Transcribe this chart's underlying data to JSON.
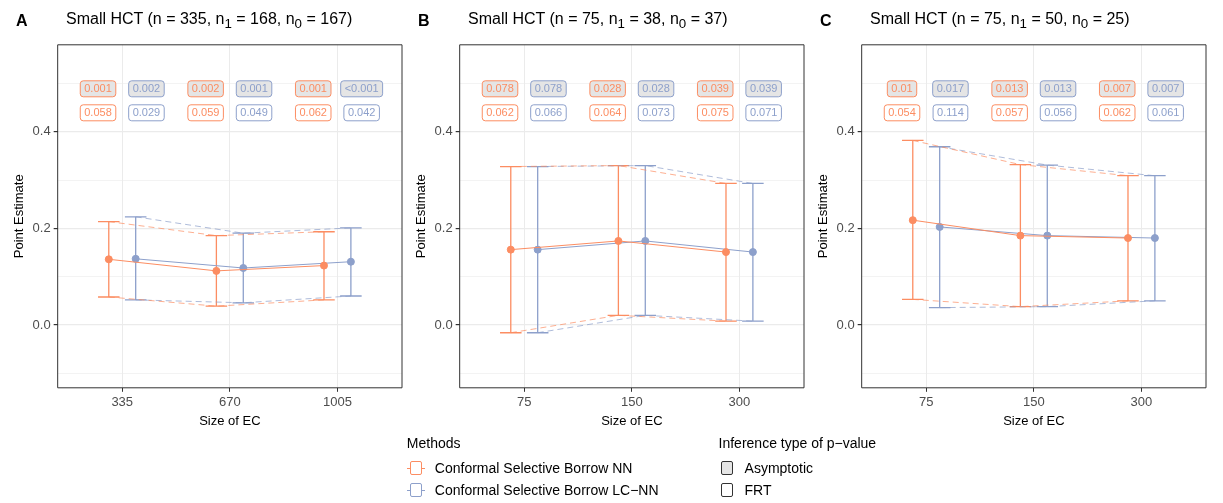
{
  "chart_data": [
    {
      "type": "line",
      "title": "Small HCT (n = 335, n$_{1}$ = 168, n$_{0}$ = 167)",
      "xlabel": "Size of EC",
      "ylabel": "Point Estimate",
      "legend_title": "Methods",
      "legend": "bottom",
      "marker": "circle",
      "line_style": "solid",
      "grid": true,
      "categories": [
        "335",
        "670",
        "1005"
      ],
      "ylim": [
        -0.13,
        0.58
      ],
      "yticks": [
        {
          "value": -0.1,
          "label": null
        },
        {
          "value": 0,
          "label": "0.0"
        },
        {
          "value": 0.1,
          "label": null
        },
        {
          "value": 0.2,
          "label": "0.2"
        },
        {
          "value": 0.3,
          "label": null
        },
        {
          "value": 0.4,
          "label": "0.4"
        },
        {
          "value": 0.5,
          "label": null
        }
      ],
      "series": [
        {
          "name": "Conformal Selective Borrow NN",
          "color": "#fc8d62",
          "values": [
            0.136,
            0.112,
            0.123
          ],
          "errors": [
            [
              0.058,
              0.214
            ],
            [
              0.039,
              0.185
            ],
            [
              0.052,
              0.193
            ]
          ]
        },
        {
          "name": "Conformal Selective Borrow LC−NN",
          "color": "#8da0cb",
          "values": [
            0.137,
            0.118,
            0.131
          ],
          "errors": [
            [
              0.052,
              0.224
            ],
            [
              0.046,
              0.19
            ],
            [
              0.06,
              0.201
            ]
          ]
        },
        {
          "color": "#fc8d62",
          "marker": "none",
          "line_style": "dashed",
          "values": [
            0.214,
            0.185,
            0.193
          ]
        },
        {
          "color": "#8da0cb",
          "marker": "none",
          "line_style": "dashed",
          "values": [
            0.224,
            0.19,
            0.201
          ]
        },
        {
          "color": "#fc8d62",
          "marker": "none",
          "line_style": "dashed",
          "values": [
            0.058,
            0.039,
            0.052
          ]
        },
        {
          "color": "#8da0cb",
          "marker": "none",
          "line_style": "dashed",
          "values": [
            0.052,
            0.046,
            0.06
          ]
        }
      ],
      "annotations": [
        "A",
        "0.001",
        "0.002",
        "0.058",
        "0.029",
        "0.002",
        "0.001",
        "0.059",
        "0.049",
        "0.001",
        "<0.001",
        "0.062",
        "0.042"
      ]
    },
    {
      "type": "line",
      "title": "Small HCT (n = 75, n$_{1}$ = 38, n$_{0}$ = 37)",
      "xlabel": "Size of EC",
      "ylabel": "Point Estimate",
      "marker": "circle",
      "line_style": "solid",
      "grid": true,
      "categories": [
        "75",
        "150",
        "300"
      ],
      "ylim": [
        -0.13,
        0.58
      ],
      "yticks": [
        {
          "value": -0.1,
          "label": null
        },
        {
          "value": 0,
          "label": "0.0"
        },
        {
          "value": 0.1,
          "label": null
        },
        {
          "value": 0.2,
          "label": "0.2"
        },
        {
          "value": 0.3,
          "label": null
        },
        {
          "value": 0.4,
          "label": "0.4"
        },
        {
          "value": 0.5,
          "label": null
        }
      ],
      "series": [
        {
          "color": "#fc8d62",
          "values": [
            0.156,
            0.174,
            0.151
          ],
          "errors": [
            [
              -0.016,
              0.328
            ],
            [
              0.02,
              0.33
            ],
            [
              0.008,
              0.293
            ]
          ]
        },
        {
          "color": "#8da0cb",
          "values": [
            0.156,
            0.174,
            0.151
          ],
          "errors": [
            [
              -0.016,
              0.328
            ],
            [
              0.02,
              0.33
            ],
            [
              0.008,
              0.293
            ]
          ]
        },
        {
          "color": "#fc8d62",
          "marker": "none",
          "line_style": "dashed",
          "values": [
            0.328,
            0.33,
            0.293
          ]
        },
        {
          "color": "#8da0cb",
          "marker": "none",
          "line_style": "dashed",
          "values": [
            0.328,
            0.33,
            0.293
          ]
        },
        {
          "color": "#fc8d62",
          "marker": "none",
          "line_style": "dashed",
          "values": [
            -0.016,
            0.02,
            0.008
          ]
        },
        {
          "color": "#8da0cb",
          "marker": "none",
          "line_style": "dashed",
          "values": [
            -0.016,
            0.02,
            0.008
          ]
        }
      ],
      "annotations": [
        "B",
        "0.078",
        "0.078",
        "0.062",
        "0.066",
        "0.028",
        "0.028",
        "0.064",
        "0.073",
        "0.039",
        "0.039",
        "0.075",
        "0.071"
      ]
    },
    {
      "type": "line",
      "title": "Small HCT (n = 75, n$_{1}$ = 50, n$_{0}$ = 25)",
      "xlabel": "Size of EC",
      "ylabel": "Point Estimate",
      "marker": "circle",
      "line_style": "solid",
      "grid": true,
      "categories": [
        "75",
        "150",
        "300"
      ],
      "ylim": [
        -0.13,
        0.58
      ],
      "yticks": [
        {
          "value": -0.1,
          "label": null
        },
        {
          "value": 0,
          "label": "0.0"
        },
        {
          "value": 0.1,
          "label": null
        },
        {
          "value": 0.2,
          "label": "0.2"
        },
        {
          "value": 0.3,
          "label": null
        },
        {
          "value": 0.4,
          "label": "0.4"
        },
        {
          "value": 0.5,
          "label": null
        }
      ],
      "series": [
        {
          "color": "#fc8d62",
          "values": [
            0.217,
            0.185,
            0.18
          ],
          "errors": [
            [
              0.053,
              0.382
            ],
            [
              0.038,
              0.332
            ],
            [
              0.05,
              0.309
            ]
          ]
        },
        {
          "color": "#8da0cb",
          "values": [
            0.203,
            0.185,
            0.18
          ],
          "errors": [
            [
              0.036,
              0.369
            ],
            [
              0.038,
              0.331
            ],
            [
              0.05,
              0.309
            ]
          ]
        },
        {
          "color": "#fc8d62",
          "marker": "none",
          "line_style": "dashed",
          "values": [
            0.382,
            0.332,
            0.309
          ]
        },
        {
          "color": "#8da0cb",
          "marker": "none",
          "line_style": "dashed",
          "values": [
            0.369,
            0.331,
            0.309
          ]
        },
        {
          "color": "#fc8d62",
          "marker": "none",
          "line_style": "dashed",
          "values": [
            0.053,
            0.038,
            0.05
          ]
        },
        {
          "color": "#8da0cb",
          "marker": "none",
          "line_style": "dashed",
          "values": [
            0.036,
            0.038,
            0.05
          ]
        }
      ],
      "annotations": [
        "C",
        "0.01",
        "0.017",
        "0.054",
        "0.114",
        "0.013",
        "0.013",
        "0.057",
        "0.056",
        "0.007",
        "0.007",
        "0.062",
        "0.061"
      ]
    },
    {
      "type": "other",
      "title": "Inference type of p−value",
      "categories": [
        "Asymptotic",
        "FRT"
      ],
      "colors": [
        "#e5e5e5",
        "#ffffff"
      ]
    }
  ]
}
